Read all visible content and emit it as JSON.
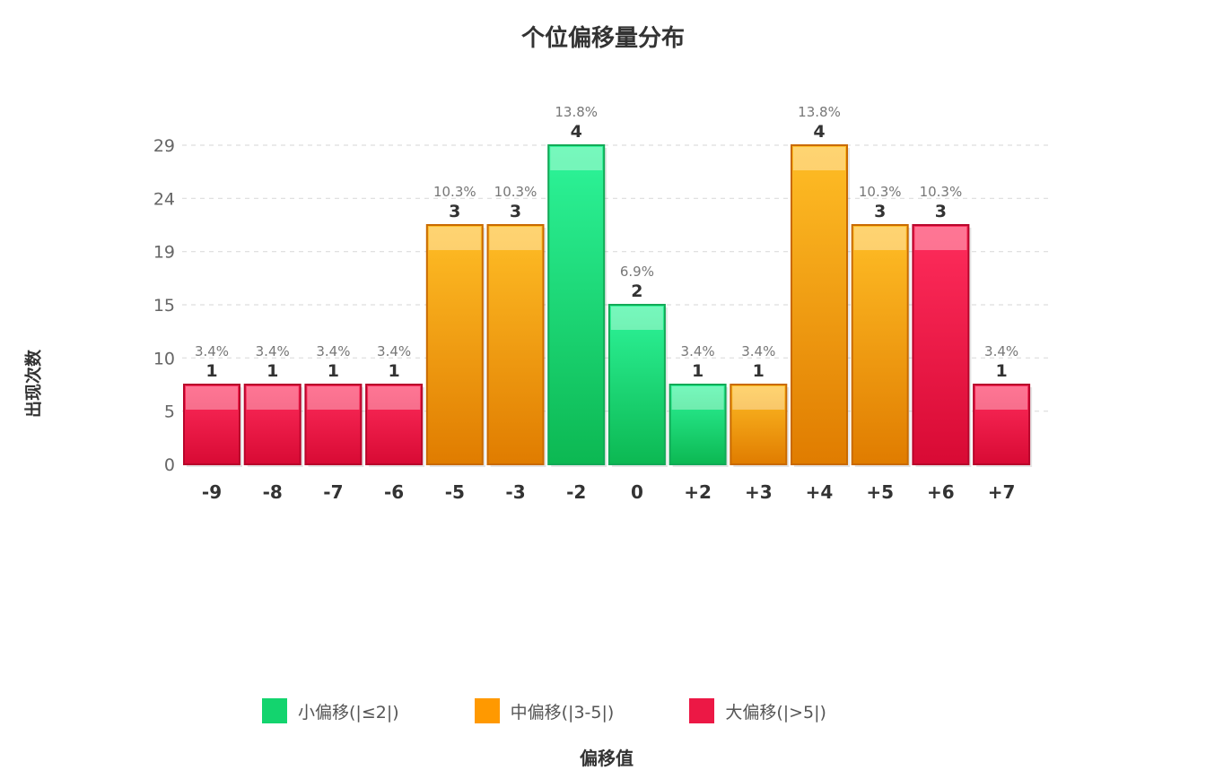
{
  "chart_data": {
    "type": "bar",
    "title": "个位偏移量分布",
    "xlabel": "偏移值",
    "ylabel": "出现次数",
    "categories": [
      "-9",
      "-8",
      "-7",
      "-6",
      "-5",
      "-3",
      "-2",
      "0",
      "+2",
      "+3",
      "+4",
      "+5",
      "+6",
      "+7"
    ],
    "values": [
      1,
      1,
      1,
      1,
      3,
      3,
      4,
      2,
      1,
      1,
      4,
      3,
      3,
      1
    ],
    "percent_labels": [
      "3.4%",
      "3.4%",
      "3.4%",
      "3.4%",
      "10.3%",
      "10.3%",
      "13.8%",
      "6.9%",
      "3.4%",
      "3.4%",
      "13.8%",
      "10.3%",
      "10.3%",
      "3.4%"
    ],
    "bar_groups": [
      "large",
      "large",
      "large",
      "large",
      "medium",
      "medium",
      "small",
      "small",
      "small",
      "medium",
      "medium",
      "medium",
      "large",
      "large"
    ],
    "yticks": [
      "0",
      "5",
      "10",
      "15",
      "19",
      "24",
      "29"
    ],
    "ylim": [
      0,
      4
    ],
    "grid": true,
    "legend_position": "bottom",
    "legend": [
      {
        "key": "small",
        "label": "小偏移(|≤2|)",
        "color": "#13d46e"
      },
      {
        "key": "medium",
        "label": "中偏移(|3-5|)",
        "color": "#ff9900"
      },
      {
        "key": "large",
        "label": "大偏移(|>5|)",
        "color": "#ec1845"
      }
    ]
  },
  "colors": {
    "small_top": "#2ef59a",
    "small_bottom": "#0cb852",
    "small_border": "#12a956",
    "medium_top": "#ffbe26",
    "medium_bottom": "#e07c00",
    "medium_border": "#c96a00",
    "large_top": "#ff2d5c",
    "large_bottom": "#d80a34",
    "large_border": "#b8052b",
    "grid": "#dddddd",
    "axis_text": "#666666",
    "value_text": "#333333",
    "percent_text": "#777777"
  }
}
